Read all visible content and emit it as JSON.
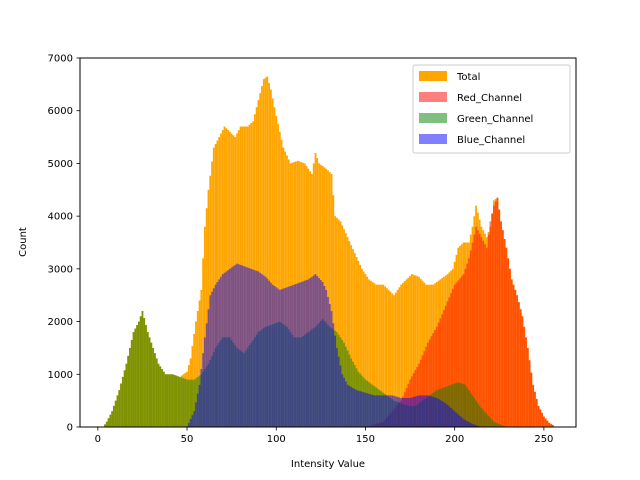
{
  "chart_data": {
    "type": "bar",
    "title": "",
    "xlabel": "Intensity Value",
    "ylabel": "Count",
    "xlim": [
      -10,
      268
    ],
    "ylim": [
      0,
      7000
    ],
    "xticks": [
      0,
      50,
      100,
      150,
      200,
      250
    ],
    "yticks": [
      0,
      1000,
      2000,
      3000,
      4000,
      5000,
      6000,
      7000
    ],
    "legend_position": "upper right",
    "bins": 256,
    "series": [
      {
        "name": "Total",
        "color": "#ffa500",
        "opacity": 1.0,
        "key_points": [
          [
            0,
            0
          ],
          [
            3,
            0
          ],
          [
            5,
            100
          ],
          [
            8,
            300
          ],
          [
            12,
            700
          ],
          [
            16,
            1200
          ],
          [
            20,
            1800
          ],
          [
            23,
            2000
          ],
          [
            25,
            2200
          ],
          [
            28,
            1800
          ],
          [
            31,
            1500
          ],
          [
            34,
            1200
          ],
          [
            38,
            1000
          ],
          [
            42,
            1000
          ],
          [
            46,
            950
          ],
          [
            50,
            1050
          ],
          [
            52,
            1300
          ],
          [
            55,
            2000
          ],
          [
            58,
            2600
          ],
          [
            60,
            3800
          ],
          [
            62,
            4500
          ],
          [
            65,
            5300
          ],
          [
            68,
            5500
          ],
          [
            71,
            5700
          ],
          [
            74,
            5600
          ],
          [
            77,
            5500
          ],
          [
            80,
            5700
          ],
          [
            84,
            5700
          ],
          [
            87,
            5800
          ],
          [
            90,
            6200
          ],
          [
            93,
            6600
          ],
          [
            95,
            6650
          ],
          [
            97,
            6400
          ],
          [
            100,
            5900
          ],
          [
            104,
            5300
          ],
          [
            108,
            5000
          ],
          [
            112,
            5050
          ],
          [
            116,
            5000
          ],
          [
            120,
            4800
          ],
          [
            122,
            5200
          ],
          [
            124,
            5000
          ],
          [
            128,
            4900
          ],
          [
            131,
            4800
          ],
          [
            133,
            4000
          ],
          [
            136,
            3900
          ],
          [
            140,
            3600
          ],
          [
            144,
            3300
          ],
          [
            148,
            3000
          ],
          [
            152,
            2800
          ],
          [
            156,
            2700
          ],
          [
            160,
            2700
          ],
          [
            163,
            2600
          ],
          [
            166,
            2500
          ],
          [
            170,
            2700
          ],
          [
            173,
            2800
          ],
          [
            176,
            2900
          ],
          [
            180,
            2850
          ],
          [
            184,
            2700
          ],
          [
            188,
            2700
          ],
          [
            192,
            2800
          ],
          [
            196,
            2900
          ],
          [
            199,
            3000
          ],
          [
            202,
            3400
          ],
          [
            205,
            3500
          ],
          [
            208,
            3500
          ],
          [
            210,
            3800
          ],
          [
            212,
            4200
          ],
          [
            215,
            3800
          ],
          [
            218,
            3600
          ],
          [
            220,
            3800
          ],
          [
            222,
            4300
          ],
          [
            224,
            4350
          ],
          [
            226,
            3900
          ],
          [
            229,
            3400
          ],
          [
            232,
            2800
          ],
          [
            235,
            2500
          ],
          [
            238,
            2100
          ],
          [
            241,
            1500
          ],
          [
            244,
            800
          ],
          [
            247,
            400
          ],
          [
            250,
            200
          ],
          [
            253,
            80
          ],
          [
            255,
            40
          ]
        ]
      },
      {
        "name": "Red_Channel",
        "color": "#ff0000",
        "opacity": 0.5,
        "key_points": [
          [
            0,
            0
          ],
          [
            150,
            0
          ],
          [
            160,
            100
          ],
          [
            165,
            300
          ],
          [
            170,
            500
          ],
          [
            175,
            900
          ],
          [
            180,
            1200
          ],
          [
            185,
            1600
          ],
          [
            190,
            1900
          ],
          [
            195,
            2300
          ],
          [
            200,
            2700
          ],
          [
            205,
            2900
          ],
          [
            208,
            3200
          ],
          [
            212,
            3800
          ],
          [
            215,
            3600
          ],
          [
            218,
            3400
          ],
          [
            220,
            3900
          ],
          [
            222,
            4200
          ],
          [
            224,
            4350
          ],
          [
            226,
            3900
          ],
          [
            229,
            3400
          ],
          [
            232,
            2800
          ],
          [
            235,
            2500
          ],
          [
            238,
            2100
          ],
          [
            241,
            1500
          ],
          [
            244,
            800
          ],
          [
            247,
            400
          ],
          [
            250,
            200
          ],
          [
            253,
            80
          ],
          [
            255,
            40
          ]
        ]
      },
      {
        "name": "Green_Channel",
        "color": "#008000",
        "opacity": 0.5,
        "key_points": [
          [
            0,
            0
          ],
          [
            3,
            0
          ],
          [
            5,
            100
          ],
          [
            8,
            300
          ],
          [
            12,
            700
          ],
          [
            16,
            1200
          ],
          [
            20,
            1800
          ],
          [
            23,
            2000
          ],
          [
            25,
            2200
          ],
          [
            28,
            1800
          ],
          [
            31,
            1500
          ],
          [
            34,
            1200
          ],
          [
            38,
            1000
          ],
          [
            42,
            1000
          ],
          [
            46,
            950
          ],
          [
            50,
            900
          ],
          [
            54,
            900
          ],
          [
            58,
            1000
          ],
          [
            62,
            1200
          ],
          [
            66,
            1500
          ],
          [
            70,
            1700
          ],
          [
            74,
            1700
          ],
          [
            78,
            1500
          ],
          [
            82,
            1400
          ],
          [
            86,
            1600
          ],
          [
            90,
            1800
          ],
          [
            94,
            1900
          ],
          [
            98,
            1950
          ],
          [
            102,
            2000
          ],
          [
            106,
            1900
          ],
          [
            110,
            1700
          ],
          [
            114,
            1700
          ],
          [
            118,
            1800
          ],
          [
            122,
            1900
          ],
          [
            126,
            2050
          ],
          [
            130,
            1900
          ],
          [
            134,
            1800
          ],
          [
            138,
            1600
          ],
          [
            142,
            1300
          ],
          [
            146,
            1050
          ],
          [
            150,
            900
          ],
          [
            154,
            800
          ],
          [
            158,
            700
          ],
          [
            162,
            600
          ],
          [
            166,
            500
          ],
          [
            170,
            450
          ],
          [
            174,
            400
          ],
          [
            178,
            400
          ],
          [
            182,
            500
          ],
          [
            186,
            600
          ],
          [
            190,
            700
          ],
          [
            194,
            750
          ],
          [
            198,
            800
          ],
          [
            202,
            850
          ],
          [
            206,
            800
          ],
          [
            210,
            600
          ],
          [
            214,
            400
          ],
          [
            218,
            250
          ],
          [
            222,
            100
          ],
          [
            226,
            40
          ],
          [
            230,
            0
          ],
          [
            255,
            0
          ]
        ]
      },
      {
        "name": "Blue_Channel",
        "color": "#0000ff",
        "opacity": 0.5,
        "key_points": [
          [
            0,
            0
          ],
          [
            50,
            0
          ],
          [
            54,
            300
          ],
          [
            57,
            800
          ],
          [
            60,
            1700
          ],
          [
            63,
            2500
          ],
          [
            66,
            2700
          ],
          [
            70,
            2900
          ],
          [
            74,
            3000
          ],
          [
            78,
            3100
          ],
          [
            82,
            3050
          ],
          [
            86,
            3000
          ],
          [
            90,
            2950
          ],
          [
            94,
            2850
          ],
          [
            98,
            2700
          ],
          [
            102,
            2600
          ],
          [
            106,
            2650
          ],
          [
            110,
            2700
          ],
          [
            114,
            2750
          ],
          [
            118,
            2800
          ],
          [
            122,
            2900
          ],
          [
            126,
            2750
          ],
          [
            128,
            2600
          ],
          [
            131,
            2200
          ],
          [
            134,
            1500
          ],
          [
            137,
            1000
          ],
          [
            140,
            800
          ],
          [
            145,
            700
          ],
          [
            150,
            650
          ],
          [
            155,
            600
          ],
          [
            160,
            600
          ],
          [
            165,
            600
          ],
          [
            170,
            550
          ],
          [
            175,
            550
          ],
          [
            180,
            600
          ],
          [
            185,
            600
          ],
          [
            190,
            550
          ],
          [
            195,
            450
          ],
          [
            200,
            300
          ],
          [
            205,
            150
          ],
          [
            210,
            60
          ],
          [
            215,
            0
          ],
          [
            255,
            0
          ]
        ]
      }
    ]
  }
}
